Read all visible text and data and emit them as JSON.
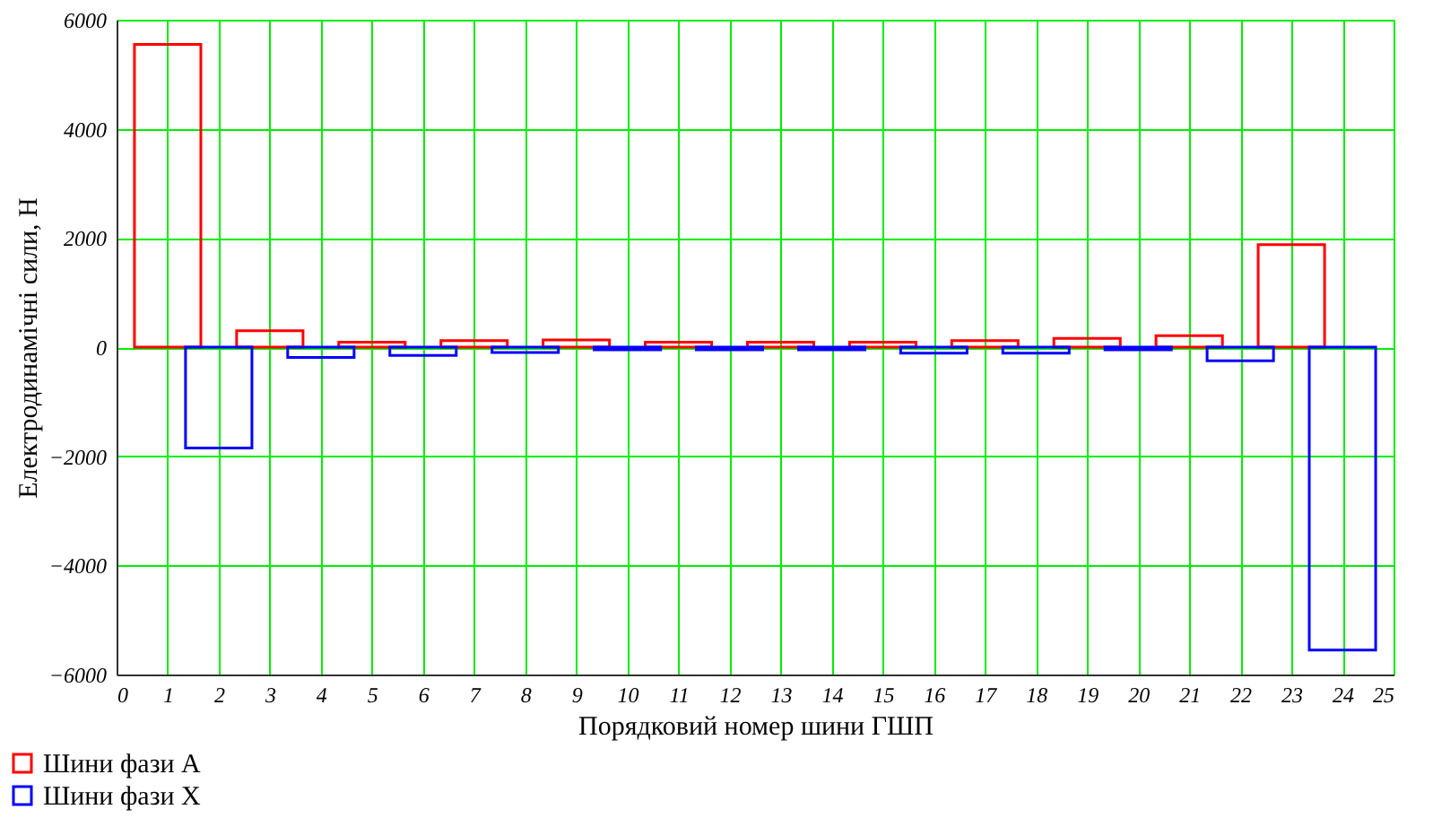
{
  "chart_data": {
    "type": "bar",
    "xlabel": "Порядковий номер шини ГШП",
    "ylabel": "Електродинамічні сили, Н",
    "series": [
      {
        "name": "Шини фази А",
        "color": "#ff0000",
        "x": [
          1,
          3,
          5,
          7,
          9,
          11,
          13,
          15,
          17,
          19,
          21,
          23
        ],
        "values": [
          5550,
          300,
          90,
          120,
          130,
          90,
          90,
          90,
          120,
          160,
          210,
          1880
        ]
      },
      {
        "name": "Шини фази X",
        "color": "#0000ff",
        "x": [
          2,
          4,
          6,
          8,
          10,
          12,
          14,
          16,
          18,
          20,
          22,
          24
        ],
        "values": [
          -1850,
          -190,
          -150,
          -100,
          -50,
          -50,
          -50,
          -110,
          -110,
          -50,
          -250,
          -5550
        ]
      }
    ],
    "xlim": [
      0,
      25
    ],
    "xticks": [
      0,
      1,
      2,
      3,
      4,
      5,
      6,
      7,
      8,
      9,
      10,
      11,
      12,
      13,
      14,
      15,
      16,
      17,
      18,
      19,
      20,
      21,
      22,
      23,
      24,
      25
    ],
    "ylim": [
      -6000,
      6000
    ],
    "yticks": [
      -6000,
      -4000,
      -2000,
      0,
      2000,
      4000,
      6000
    ],
    "grid": true,
    "legend": "bottom left"
  }
}
